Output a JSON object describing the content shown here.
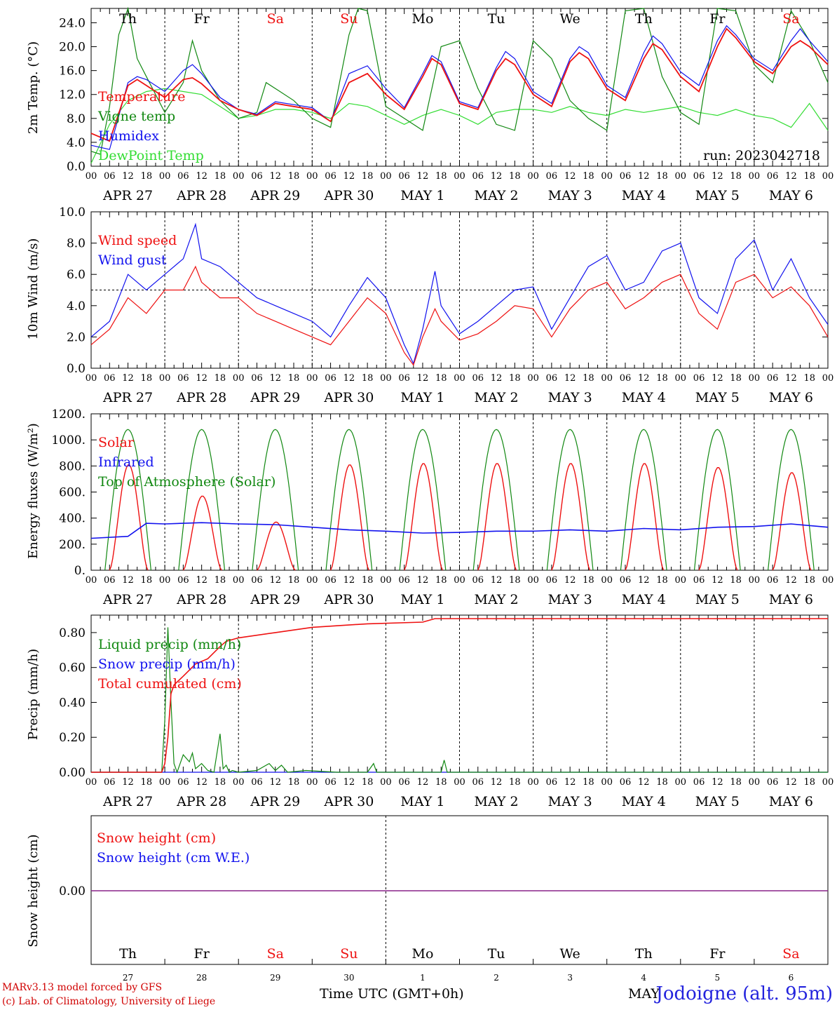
{
  "station": "Jodoigne (alt. 95m)",
  "run_label": "run: 2023042718",
  "credits": [
    "MARv3.13 model forced by GFS",
    "(c) Lab. of Climatology, University of Liege"
  ],
  "x_title": "Time UTC (GMT+0h)",
  "month_label": "MAY",
  "days": [
    "Th",
    "Fr",
    "Sa",
    "Su",
    "Mo",
    "Tu",
    "We",
    "Th",
    "Fr",
    "Sa"
  ],
  "weekend_flags": [
    false,
    false,
    true,
    true,
    false,
    false,
    false,
    false,
    false,
    true
  ],
  "dates": [
    "APR 27",
    "APR 28",
    "APR 29",
    "APR 30",
    "MAY  1",
    "MAY  2",
    "MAY  3",
    "MAY  4",
    "MAY  5",
    "MAY  6"
  ],
  "day_numbers": [
    "27",
    "28",
    "29",
    "30",
    "1",
    "2",
    "3",
    "4",
    "5",
    "6"
  ],
  "hour_ticks": [
    "00",
    "06",
    "12",
    "18"
  ],
  "colors": {
    "red": "#ee1111",
    "darkgreen": "#118811",
    "blue": "#1111ee",
    "lightgreen": "#33dd33",
    "purple": "#882288"
  },
  "chart_data": [
    {
      "type": "line",
      "ylabel": "2m Temp. (°C)",
      "ylim": [
        0,
        26.4
      ],
      "yticks": [
        "0.0",
        "4.0",
        "8.0",
        "12.0",
        "16.0",
        "20.0",
        "24.0"
      ],
      "ytick_values": [
        0,
        4,
        8,
        12,
        16,
        20,
        24
      ],
      "x_range_hours": [
        0,
        240
      ],
      "series": [
        {
          "name": "Temperature",
          "color": "red",
          "x": [
            0,
            6,
            12,
            15,
            18,
            24,
            30,
            33,
            36,
            42,
            48,
            54,
            60,
            66,
            72,
            78,
            84,
            90,
            96,
            102,
            108,
            111,
            114,
            120,
            126,
            132,
            135,
            138,
            144,
            150,
            156,
            159,
            162,
            168,
            174,
            180,
            183,
            186,
            192,
            198,
            204,
            207,
            210,
            216,
            222,
            228,
            231,
            234,
            240
          ],
          "y": [
            5.5,
            4.2,
            13.5,
            14.5,
            13.5,
            11.5,
            14.5,
            14.8,
            13.8,
            11,
            9.5,
            8.5,
            10.5,
            10,
            9.5,
            7.5,
            14,
            15.5,
            12,
            9.5,
            15,
            18.0,
            17,
            10.5,
            9.5,
            16,
            18.0,
            17,
            12,
            10,
            17.5,
            19.0,
            18,
            13,
            11,
            18,
            20.5,
            19.5,
            15,
            12.5,
            20,
            23.0,
            21.5,
            17.5,
            15.5,
            20,
            21.0,
            20,
            17
          ]
        },
        {
          "name": "Vigne temp",
          "color": "darkgreen",
          "x": [
            0,
            3,
            6,
            9,
            12,
            15,
            18,
            24,
            30,
            33,
            36,
            42,
            48,
            54,
            57,
            60,
            66,
            72,
            78,
            84,
            87,
            90,
            96,
            102,
            108,
            114,
            120,
            126,
            132,
            138,
            144,
            150,
            156,
            162,
            168,
            174,
            180,
            186,
            192,
            198,
            204,
            210,
            216,
            222,
            228,
            234,
            240
          ],
          "y": [
            2.5,
            2,
            10,
            22,
            27,
            18,
            15,
            9,
            14,
            21,
            16,
            11,
            8,
            9,
            14,
            13,
            11,
            8,
            6.5,
            22,
            28,
            26,
            10,
            8,
            6,
            20,
            21,
            13,
            7,
            6,
            21,
            18,
            11,
            8,
            6,
            26,
            27,
            15,
            9,
            7,
            27,
            26,
            17,
            14,
            26,
            21,
            14
          ]
        },
        {
          "name": "Humidex",
          "color": "blue",
          "x": [
            0,
            6,
            12,
            15,
            18,
            24,
            30,
            33,
            36,
            42,
            48,
            54,
            60,
            66,
            72,
            78,
            84,
            90,
            96,
            102,
            108,
            111,
            114,
            120,
            126,
            132,
            135,
            138,
            144,
            150,
            156,
            159,
            162,
            168,
            174,
            180,
            183,
            186,
            192,
            198,
            204,
            207,
            210,
            216,
            222,
            228,
            231,
            234,
            240
          ],
          "y": [
            3.5,
            2.8,
            14,
            15,
            14.5,
            12.5,
            16,
            17.0,
            15.5,
            11.5,
            9.5,
            8.7,
            10.8,
            10.3,
            9.8,
            7.5,
            15.5,
            16.8,
            13,
            9.8,
            15.5,
            18.5,
            17.5,
            10.8,
            9.8,
            16.5,
            19.2,
            18,
            12.5,
            10.5,
            18,
            20.0,
            19,
            13.5,
            11.5,
            19,
            21.8,
            20.5,
            15.8,
            13.5,
            21,
            23.5,
            22.0,
            18,
            16,
            21,
            23.0,
            21,
            17.5
          ]
        },
        {
          "name": "DewPoint Temp",
          "color": "lightgreen",
          "x": [
            0,
            6,
            12,
            18,
            24,
            30,
            36,
            42,
            48,
            54,
            60,
            66,
            72,
            78,
            84,
            90,
            96,
            102,
            108,
            114,
            120,
            126,
            132,
            138,
            144,
            150,
            156,
            162,
            168,
            174,
            180,
            186,
            192,
            198,
            204,
            210,
            216,
            222,
            228,
            234,
            240
          ],
          "y": [
            0.5,
            7,
            11,
            12.5,
            13,
            12.5,
            12,
            10,
            8,
            8.5,
            9.5,
            9.5,
            9,
            8,
            10.5,
            10,
            8.5,
            7,
            8.5,
            9.5,
            8.5,
            7,
            9,
            9.5,
            9.5,
            9,
            10,
            9,
            8.5,
            9.5,
            9,
            9.5,
            10,
            9,
            8.5,
            9.5,
            8.5,
            8,
            6.5,
            10.5,
            6
          ]
        }
      ]
    },
    {
      "type": "line",
      "ylabel": "10m Wind (m/s)",
      "ylim": [
        0,
        10
      ],
      "yticks": [
        "0.0",
        "2.0",
        "4.0",
        "6.0",
        "8.0",
        "10.0"
      ],
      "ytick_values": [
        0,
        2,
        4,
        6,
        8,
        10
      ],
      "reference_line": 5,
      "x_range_hours": [
        0,
        240
      ],
      "series": [
        {
          "name": "Wind speed",
          "color": "red",
          "x": [
            0,
            6,
            12,
            18,
            24,
            30,
            34,
            36,
            42,
            48,
            54,
            60,
            66,
            72,
            78,
            84,
            90,
            96,
            102,
            105,
            108,
            112,
            114,
            120,
            126,
            132,
            138,
            144,
            150,
            156,
            162,
            168,
            174,
            180,
            186,
            192,
            198,
            204,
            210,
            216,
            222,
            228,
            234,
            240
          ],
          "y": [
            1.5,
            2.5,
            4.5,
            3.5,
            5,
            5,
            6.5,
            5.5,
            4.5,
            4.5,
            3.5,
            3,
            2.5,
            2,
            1.5,
            3,
            4.5,
            3.5,
            1,
            0.2,
            2,
            3.8,
            3,
            1.8,
            2.2,
            3,
            4,
            3.8,
            2,
            3.8,
            5,
            5.5,
            3.8,
            4.5,
            5.5,
            6,
            3.5,
            2.5,
            5.5,
            6,
            4.5,
            5.2,
            4,
            2
          ]
        },
        {
          "name": "Wind gust",
          "color": "blue",
          "x": [
            0,
            6,
            12,
            18,
            24,
            30,
            34,
            36,
            42,
            48,
            54,
            60,
            66,
            72,
            78,
            84,
            90,
            96,
            102,
            105,
            108,
            112,
            114,
            120,
            126,
            132,
            138,
            144,
            150,
            156,
            162,
            168,
            174,
            180,
            186,
            192,
            198,
            204,
            210,
            216,
            222,
            228,
            234,
            240
          ],
          "y": [
            2,
            3,
            6,
            5,
            6,
            7,
            9.2,
            7,
            6.5,
            5.5,
            4.5,
            4,
            3.5,
            3,
            2,
            4,
            5.8,
            4.5,
            1.5,
            0.3,
            2.5,
            6.2,
            4,
            2.2,
            3,
            4,
            5,
            5.2,
            2.5,
            4.5,
            6.5,
            7.2,
            5,
            5.5,
            7.5,
            8.0,
            4.5,
            3.5,
            7,
            8.2,
            5,
            7,
            4.5,
            2.8
          ]
        }
      ]
    },
    {
      "type": "line",
      "ylabel": "Energy fluxes (W/m²)",
      "ylim": [
        0,
        1200
      ],
      "yticks": [
        "0.",
        "200.",
        "400.",
        "600.",
        "800.",
        "1000.",
        "1200."
      ],
      "ytick_values": [
        0,
        200,
        400,
        600,
        800,
        1000,
        1200
      ],
      "x_range_hours": [
        0,
        240
      ],
      "series": [
        {
          "name": "Solar",
          "color": "red",
          "daily_peaks": [
            810,
            570,
            370,
            810,
            820,
            820,
            820,
            820,
            790,
            750
          ]
        },
        {
          "name": "Infrared",
          "color": "blue",
          "x": [
            0,
            12,
            18,
            24,
            36,
            48,
            60,
            72,
            84,
            96,
            108,
            120,
            132,
            144,
            156,
            168,
            180,
            192,
            204,
            216,
            228,
            240
          ],
          "y": [
            245,
            260,
            360,
            355,
            365,
            355,
            350,
            330,
            310,
            300,
            285,
            290,
            300,
            300,
            310,
            300,
            320,
            310,
            330,
            335,
            355,
            330
          ]
        },
        {
          "name": "Top of Atmosphere (Solar)",
          "color": "darkgreen",
          "daily_peak": 1080,
          "sunrise_h": 4.5,
          "sunset_h": 19.5
        }
      ]
    },
    {
      "type": "line",
      "ylabel": "Precip (mm/h)",
      "ylim": [
        0,
        0.9
      ],
      "yticks": [
        "0.00",
        "0.20",
        "0.40",
        "0.60",
        "0.80"
      ],
      "ytick_values": [
        0,
        0.2,
        0.4,
        0.6,
        0.8
      ],
      "x_range_hours": [
        0,
        240
      ],
      "series": [
        {
          "name": "Liquid precip (mm/h)",
          "color": "darkgreen",
          "x": [
            0,
            23,
            24,
            25,
            26,
            27,
            28,
            30,
            32,
            33,
            34,
            36,
            38,
            40,
            42,
            43,
            44,
            45,
            46,
            48,
            54,
            58,
            60,
            62,
            64,
            70,
            80,
            90,
            92,
            93,
            94,
            114,
            115,
            116,
            120,
            240
          ],
          "y": [
            0,
            0,
            0.3,
            0.83,
            0.4,
            0.05,
            0,
            0.1,
            0.06,
            0.11,
            0.02,
            0.05,
            0.01,
            0,
            0.22,
            0.02,
            0.04,
            0,
            0.01,
            0,
            0.01,
            0.05,
            0.01,
            0.04,
            0,
            0.01,
            0,
            0,
            0.05,
            0,
            0,
            0,
            0.07,
            0,
            0,
            0
          ]
        },
        {
          "name": "Snow precip (mm/h)",
          "color": "blue",
          "x": [
            0,
            240
          ],
          "y": [
            0,
            0
          ]
        },
        {
          "name": "Total cumulated (cm)",
          "color": "red",
          "x": [
            0,
            23,
            24,
            25,
            26,
            27,
            30,
            34,
            38,
            42,
            44,
            48,
            60,
            72,
            90,
            108,
            112,
            120,
            240
          ],
          "y": [
            0,
            0,
            0.05,
            0.2,
            0.45,
            0.5,
            0.55,
            0.62,
            0.65,
            0.72,
            0.75,
            0.77,
            0.8,
            0.83,
            0.85,
            0.86,
            0.88,
            0.88,
            0.88
          ]
        }
      ]
    },
    {
      "type": "line",
      "ylabel": "Snow height (cm)",
      "yticks": [
        "0.00"
      ],
      "x_range_hours": [
        0,
        240
      ],
      "series": [
        {
          "name": "Snow height (cm)",
          "color": "red",
          "x": [
            0,
            240
          ],
          "y": [
            0,
            0
          ]
        },
        {
          "name": "Snow height (cm W.E.)",
          "color": "blue",
          "x": [
            0,
            240
          ],
          "y": [
            0,
            0
          ]
        }
      ]
    }
  ]
}
